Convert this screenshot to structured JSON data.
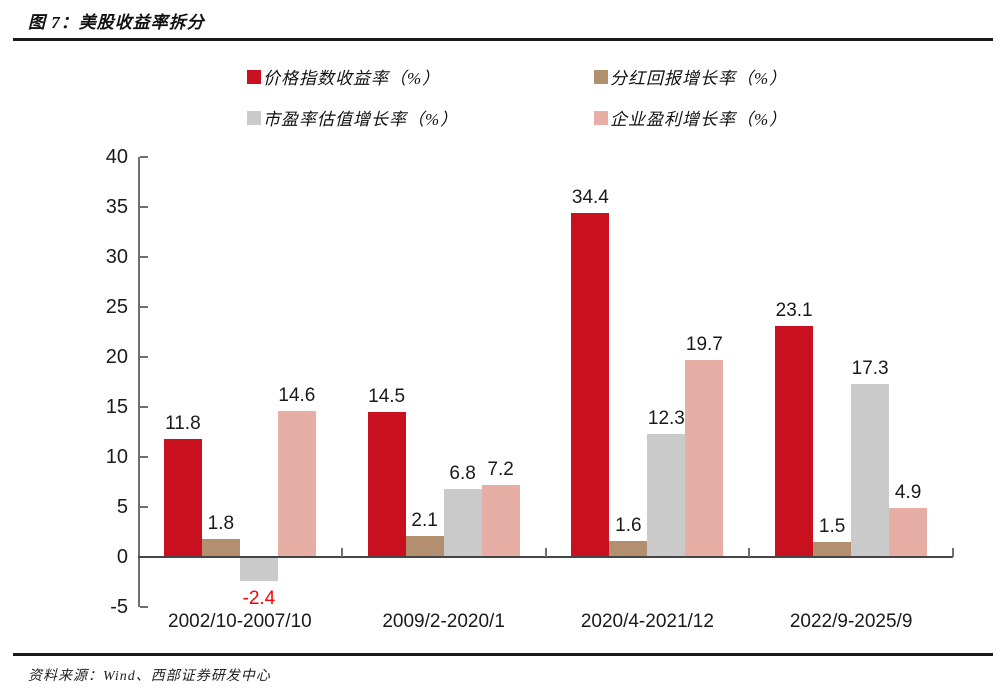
{
  "header": {
    "title": "图 7：美股收益率拆分"
  },
  "footer": {
    "source": "资料来源：Wind、西部证券研发中心"
  },
  "chart_data": {
    "type": "bar",
    "title": "图 7：美股收益率拆分",
    "xlabel": "",
    "ylabel": "",
    "categories": [
      "2002/10-2007/10",
      "2009/2-2020/1",
      "2020/4-2021/12",
      "2022/9-2025/9"
    ],
    "series": [
      {
        "name": "价格指数收益率（%）",
        "color": "#c8101e",
        "values": [
          11.8,
          14.5,
          34.4,
          23.1
        ]
      },
      {
        "name": "分红回报增长率（%）",
        "color": "#b28f6e",
        "values": [
          1.8,
          2.1,
          1.6,
          1.5
        ]
      },
      {
        "name": "市盈率估值增长率（%）",
        "color": "#cacaca",
        "values": [
          -2.4,
          6.8,
          12.3,
          17.3
        ]
      },
      {
        "name": "企业盈利增长率（%）",
        "color": "#e7aea6",
        "values": [
          14.6,
          7.2,
          19.7,
          4.9
        ]
      }
    ],
    "ylim": [
      -5,
      40
    ],
    "ytick_step": 5,
    "grid": false,
    "legend_position": "top",
    "data_labels": true,
    "negative_label_color": "#fe0000",
    "axis_color": "#6e6e6e"
  }
}
